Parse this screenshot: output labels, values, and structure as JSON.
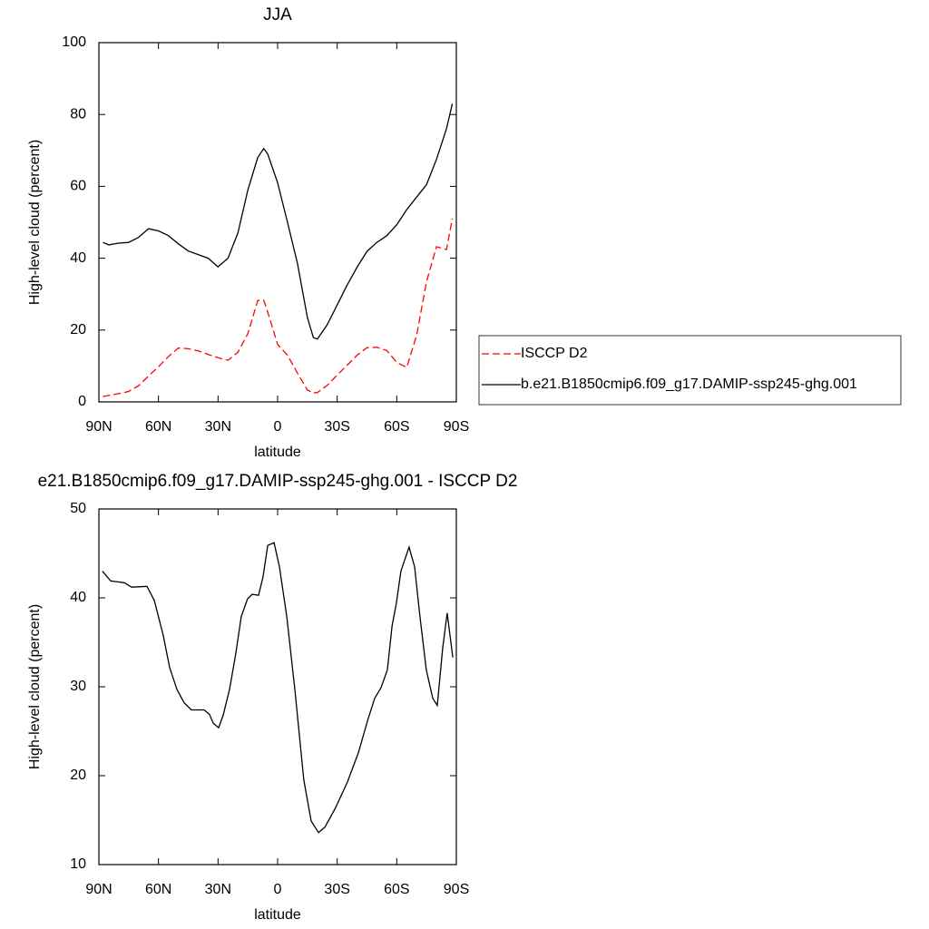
{
  "chart_data": [
    {
      "type": "line",
      "title": "JJA",
      "xlabel": "latitude",
      "ylabel": "High-level cloud (percent)",
      "x": [
        88,
        85,
        80,
        75,
        70,
        65,
        60,
        55,
        50,
        45,
        40,
        35,
        30,
        25,
        20,
        15,
        10,
        7,
        5,
        0,
        -5,
        -10,
        -15,
        -18,
        -20,
        -25,
        -30,
        -35,
        -40,
        -45,
        -50,
        -55,
        -60,
        -65,
        -70,
        -75,
        -80,
        -85,
        -88
      ],
      "series": [
        {
          "name": "ISCCP D2",
          "color": "#ff0000",
          "line_style": "dashed",
          "values": [
            1.5,
            1.8,
            2.3,
            2.9,
            4.5,
            7.2,
            9.8,
            12.6,
            15,
            14.8,
            14.2,
            13.2,
            12.3,
            11.6,
            13.8,
            19,
            28.2,
            28.3,
            25,
            16,
            13,
            8,
            3.3,
            2.5,
            2.6,
            4.6,
            7.5,
            10.2,
            13,
            15.1,
            15.2,
            14.3,
            11,
            9.6,
            18.5,
            33.5,
            43.2,
            42.4,
            51
          ]
        },
        {
          "name": "b.e21.B1850cmip6.f09_g17.DAMIP-ssp245-ghg.001",
          "color": "#000000",
          "line_style": "solid",
          "values": [
            44.4,
            43.7,
            44.2,
            44.4,
            45.8,
            48.2,
            47.6,
            46.3,
            44,
            42,
            41,
            40,
            37.6,
            40,
            47,
            59,
            68,
            70.5,
            69,
            61,
            50,
            38.5,
            23.5,
            17.9,
            17.5,
            21.5,
            27,
            32.5,
            37.5,
            41.9,
            44.4,
            46.3,
            49.3,
            53.5,
            57,
            60.5,
            67.5,
            76,
            83
          ]
        }
      ],
      "xlim": [
        90,
        -90
      ],
      "xticks": [
        {
          "value": 90,
          "label": "90N"
        },
        {
          "value": 60,
          "label": "60N"
        },
        {
          "value": 30,
          "label": "30N"
        },
        0,
        {
          "value": -30,
          "label": "30S"
        },
        {
          "value": -60,
          "label": "60S"
        },
        {
          "value": -90,
          "label": "90S"
        }
      ],
      "ylim": [
        0,
        100
      ],
      "yticks": [
        0,
        20,
        40,
        60,
        80,
        100
      ],
      "legend": "right"
    },
    {
      "type": "line",
      "title": "e21.B1850cmip6.f09_g17.DAMIP-ssp245-ghg.001 - ISCCP D2",
      "xlabel": "latitude",
      "ylabel": "High-level cloud (percent)",
      "x": [
        88.2,
        84,
        77.2,
        73.5,
        65.8,
        62.1,
        57.6,
        54.4,
        50.7,
        47.1,
        43.4,
        37,
        34.3,
        32.4,
        29.7,
        27.4,
        24.2,
        21,
        18.3,
        15.1,
        12.8,
        9.6,
        7.3,
        5,
        1.8,
        -0.9,
        -4.6,
        -8.7,
        -13.2,
        -16.9,
        -20.6,
        -23.8,
        -29.2,
        -35.2,
        -40.7,
        -45.2,
        -48.9,
        -52.1,
        -55.3,
        -57.6,
        -59.8,
        -62.1,
        -66.2,
        -69,
        -71.7,
        -74.9,
        -78.1,
        -80.4,
        -83.1,
        -85.4,
        -88.2
      ],
      "series": [
        {
          "name": null,
          "color": "#000000",
          "line_style": "solid",
          "values": [
            43,
            41.9,
            41.7,
            41.2,
            41.3,
            39.7,
            35.8,
            32.2,
            29.7,
            28.2,
            27.4,
            27.4,
            26.9,
            25.9,
            25.4,
            26.8,
            29.7,
            33.8,
            37.9,
            39.9,
            40.4,
            40.3,
            42.4,
            45.9,
            46.2,
            43.5,
            37.9,
            29.7,
            19.5,
            14.9,
            13.6,
            14.2,
            16.4,
            19.3,
            22.6,
            26.1,
            28.7,
            29.9,
            31.9,
            36.8,
            39.4,
            43,
            45.7,
            43.5,
            37.9,
            31.9,
            28.7,
            27.9,
            34.3,
            38.3,
            33.3
          ]
        }
      ],
      "xlim": [
        90,
        -90
      ],
      "xticks": [
        {
          "value": 90,
          "label": "90N"
        },
        {
          "value": 60,
          "label": "60N"
        },
        {
          "value": 30,
          "label": "30N"
        },
        0,
        {
          "value": -30,
          "label": "30S"
        },
        {
          "value": -60,
          "label": "60S"
        },
        {
          "value": -90,
          "label": "90S"
        }
      ],
      "ylim": [
        10,
        50
      ],
      "yticks": [
        10,
        20,
        30,
        40,
        50
      ]
    }
  ]
}
